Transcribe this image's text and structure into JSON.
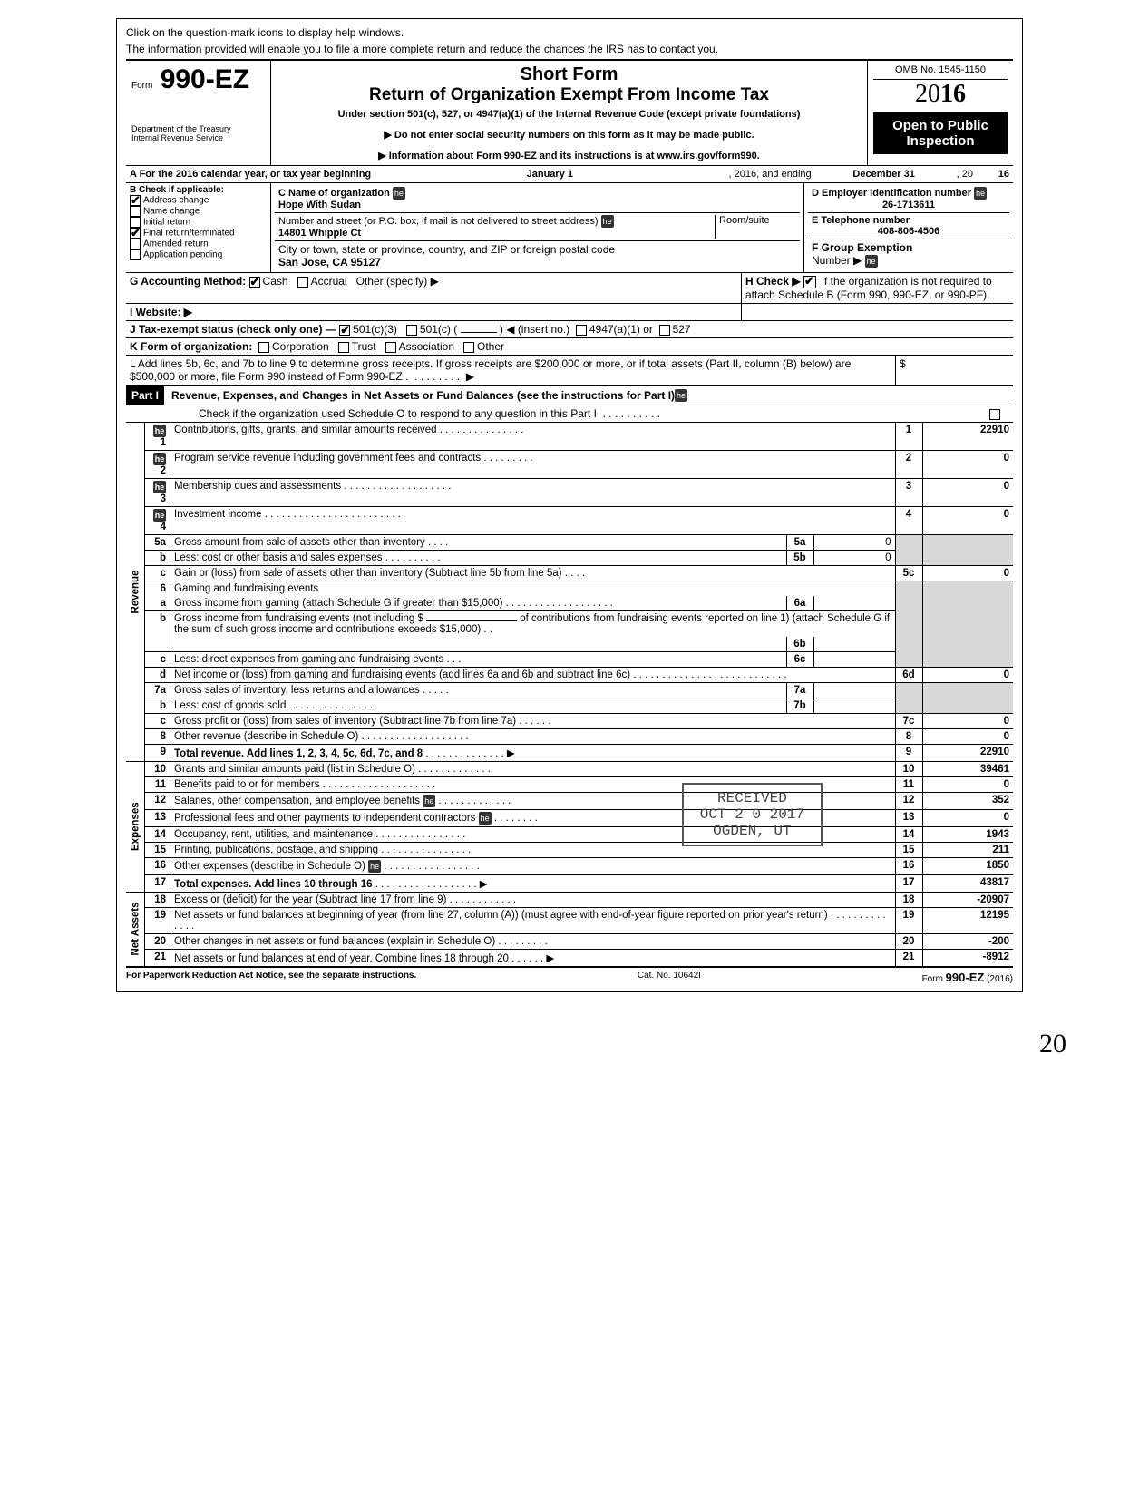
{
  "top_note_1": "Click on the question-mark icons to display help windows.",
  "top_note_2": "The information provided will enable you to file a more complete return and reduce the chances the IRS has to contact you.",
  "form": {
    "prefix": "Form",
    "number": "990-EZ",
    "short_form": "Short Form",
    "title": "Return of Organization Exempt From Income Tax",
    "under": "Under section 501(c), 527, or 4947(a)(1) of the Internal Revenue Code (except private foundations)",
    "note1": "▶ Do not enter social security numbers on this form as it may be made public.",
    "note2": "▶ Information about Form 990-EZ and its instructions is at www.irs.gov/form990.",
    "dept": "Department of the Treasury\nInternal Revenue Service",
    "omb": "OMB No. 1545-1150",
    "year_prefix": "20",
    "year_suffix": "16",
    "open_public": "Open to Public Inspection"
  },
  "line_a": {
    "label": "A  For the 2016 calendar year, or tax year beginning",
    "begin": "January 1",
    "mid": ", 2016, and ending",
    "end": "December 31",
    "year_suffix": ", 20",
    "year_val": "16"
  },
  "section_b": {
    "label": "B  Check if applicable:",
    "items": [
      {
        "label": "Address change",
        "checked": true
      },
      {
        "label": "Name change",
        "checked": false
      },
      {
        "label": "Initial return",
        "checked": false
      },
      {
        "label": "Final return/terminated",
        "checked": true
      },
      {
        "label": "Amended return",
        "checked": false
      },
      {
        "label": "Application pending",
        "checked": false
      }
    ]
  },
  "section_c": {
    "name_label": "C  Name of organization",
    "name": "Hope With Sudan",
    "street_label": "Number and street (or P.O. box, if mail is not delivered to street address)",
    "room_label": "Room/suite",
    "street": "14801 Whipple Ct",
    "city_label": "City or town, state or province, country, and ZIP or foreign postal code",
    "city": "San Jose, CA 95127"
  },
  "section_d": {
    "label": "D Employer identification number",
    "value": "26-1713611"
  },
  "section_e": {
    "label": "E Telephone number",
    "value": "408-806-4506"
  },
  "section_f": {
    "label": "F Group Exemption",
    "label2": "Number ▶"
  },
  "section_g": {
    "label": "G  Accounting Method:",
    "cash": "Cash",
    "cash_checked": true,
    "accrual": "Accrual",
    "accrual_checked": false,
    "other": "Other (specify) ▶"
  },
  "section_h": {
    "label": "H  Check ▶",
    "checked": true,
    "text": "if the organization is not required to attach Schedule B (Form 990, 990-EZ, or 990-PF)."
  },
  "section_i": {
    "label": "I   Website: ▶"
  },
  "section_j": {
    "label": "J  Tax-exempt status (check only one) —",
    "c3": "501(c)(3)",
    "c3_checked": true,
    "c": "501(c) (",
    "insert": ") ◀ (insert no.)",
    "a1": "4947(a)(1) or",
    "s527": "527"
  },
  "section_k": {
    "label": "K  Form of organization:",
    "corp": "Corporation",
    "trust": "Trust",
    "assoc": "Association",
    "other": "Other"
  },
  "section_l": {
    "text": "L  Add lines 5b, 6c, and 7b to line 9 to determine gross receipts. If gross receipts are $200,000 or more, or if total assets (Part II, column (B) below) are $500,000 or more, file Form 990 instead of Form 990-EZ .",
    "arrow": "▶",
    "dollar": "$"
  },
  "part1": {
    "label": "Part I",
    "title": "Revenue, Expenses, and Changes in Net Assets or Fund Balances (see the instructions for Part I)",
    "check_text": "Check if the organization used Schedule O to respond to any question in this Part I"
  },
  "side_labels": {
    "revenue": "Revenue",
    "expenses": "Expenses",
    "net_assets": "Net Assets"
  },
  "lines": {
    "l1": {
      "n": "1",
      "desc": "Contributions, gifts, grants, and similar amounts received",
      "rn": "1",
      "val": "22910"
    },
    "l2": {
      "n": "2",
      "desc": "Program service revenue including government fees and contracts",
      "rn": "2",
      "val": "0"
    },
    "l3": {
      "n": "3",
      "desc": "Membership dues and assessments",
      "rn": "3",
      "val": "0"
    },
    "l4": {
      "n": "4",
      "desc": "Investment income",
      "rn": "4",
      "val": "0"
    },
    "l5a": {
      "n": "5a",
      "desc": "Gross amount from sale of assets other than inventory",
      "mb": "5a",
      "mv": "0"
    },
    "l5b": {
      "n": "b",
      "desc": "Less: cost or other basis and sales expenses",
      "mb": "5b",
      "mv": "0"
    },
    "l5c": {
      "n": "c",
      "desc": "Gain or (loss) from sale of assets other than inventory (Subtract line 5b from line 5a)",
      "rn": "5c",
      "val": "0"
    },
    "l6": {
      "n": "6",
      "desc": "Gaming and fundraising events"
    },
    "l6a": {
      "n": "a",
      "desc": "Gross income from gaming (attach Schedule G if greater than $15,000)",
      "mb": "6a"
    },
    "l6b": {
      "n": "b",
      "desc": "Gross income from fundraising events (not including  $",
      "desc2": "of contributions from fundraising events reported on line 1) (attach Schedule G if the sum of such gross income and contributions exceeds $15,000)",
      "mb": "6b"
    },
    "l6c": {
      "n": "c",
      "desc": "Less: direct expenses from gaming and fundraising events",
      "mb": "6c"
    },
    "l6d": {
      "n": "d",
      "desc": "Net income or (loss) from gaming and fundraising events (add lines 6a and 6b and subtract line 6c)",
      "rn": "6d",
      "val": "0"
    },
    "l7a": {
      "n": "7a",
      "desc": "Gross sales of inventory, less returns and allowances",
      "mb": "7a"
    },
    "l7b": {
      "n": "b",
      "desc": "Less: cost of goods sold",
      "mb": "7b"
    },
    "l7c": {
      "n": "c",
      "desc": "Gross profit or (loss) from sales of inventory (Subtract line 7b from line 7a)",
      "rn": "7c",
      "val": "0"
    },
    "l8": {
      "n": "8",
      "desc": "Other revenue (describe in Schedule O)",
      "rn": "8",
      "val": "0"
    },
    "l9": {
      "n": "9",
      "desc": "Total revenue. Add lines 1, 2, 3, 4, 5c, 6d, 7c, and 8",
      "rn": "9",
      "val": "22910",
      "bold": true
    },
    "l10": {
      "n": "10",
      "desc": "Grants and similar amounts paid (list in Schedule O)",
      "rn": "10",
      "val": "39461"
    },
    "l11": {
      "n": "11",
      "desc": "Benefits paid to or for members",
      "rn": "11",
      "val": "0"
    },
    "l12": {
      "n": "12",
      "desc": "Salaries, other compensation, and employee benefits",
      "rn": "12",
      "val": "352"
    },
    "l13": {
      "n": "13",
      "desc": "Professional fees and other payments to independent contractors",
      "rn": "13",
      "val": "0"
    },
    "l14": {
      "n": "14",
      "desc": "Occupancy, rent, utilities, and maintenance",
      "rn": "14",
      "val": "1943"
    },
    "l15": {
      "n": "15",
      "desc": "Printing, publications, postage, and shipping",
      "rn": "15",
      "val": "211"
    },
    "l16": {
      "n": "16",
      "desc": "Other expenses (describe in Schedule O)",
      "rn": "16",
      "val": "1850"
    },
    "l17": {
      "n": "17",
      "desc": "Total expenses. Add lines 10 through 16",
      "rn": "17",
      "val": "43817",
      "bold": true
    },
    "l18": {
      "n": "18",
      "desc": "Excess or (deficit) for the year (Subtract line 17 from line 9)",
      "rn": "18",
      "val": "-20907"
    },
    "l19": {
      "n": "19",
      "desc": "Net assets or fund balances at beginning of year (from line 27, column (A)) (must agree with end-of-year figure reported on prior year's return)",
      "rn": "19",
      "val": "12195"
    },
    "l20": {
      "n": "20",
      "desc": "Other changes in net assets or fund balances (explain in Schedule O)",
      "rn": "20",
      "val": "-200"
    },
    "l21": {
      "n": "21",
      "desc": "Net assets or fund balances at end of year. Combine lines 18 through 20",
      "rn": "21",
      "val": "-8912"
    }
  },
  "footer": {
    "left": "For Paperwork Reduction Act Notice, see the separate instructions.",
    "mid": "Cat. No. 10642I",
    "right_prefix": "Form ",
    "right_form": "990-EZ",
    "right_suffix": " (2016)"
  },
  "stamp": {
    "l1": "RECEIVED",
    "l2": "OCT 2 0 2017",
    "l3": "OGDEN, UT"
  },
  "signature": "20"
}
